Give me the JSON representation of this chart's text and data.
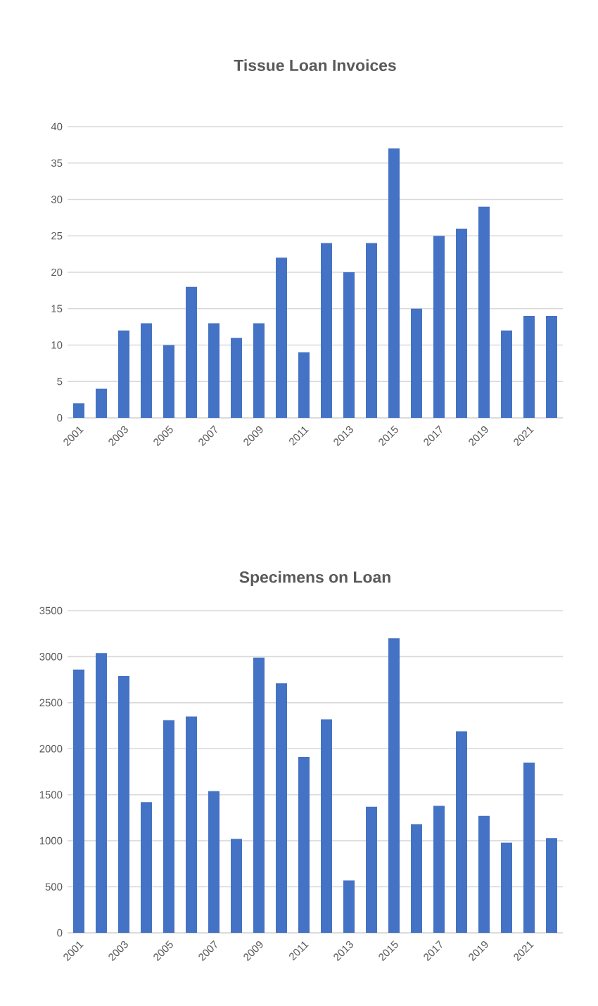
{
  "chart_data": [
    {
      "type": "bar",
      "title": "Tissue Loan Invoices",
      "categories": [
        "2001",
        null,
        "2003",
        null,
        "2005",
        null,
        "2007",
        null,
        "2009",
        null,
        "2011",
        null,
        "2013",
        null,
        "2015",
        null,
        "2017",
        null,
        "2019",
        null,
        "2021",
        null
      ],
      "values": [
        2,
        4,
        12,
        13,
        10,
        18,
        13,
        11,
        13,
        22,
        9,
        24,
        20,
        24,
        37,
        15,
        25,
        26,
        29,
        12,
        14,
        14
      ],
      "color": "#4472c4",
      "ylim": [
        0,
        40
      ],
      "yticks": [
        0,
        5,
        10,
        15,
        20,
        25,
        30,
        35,
        40
      ],
      "grid": "y"
    },
    {
      "type": "bar",
      "title": "Specimens on Loan",
      "categories": [
        "2001",
        null,
        "2003",
        null,
        "2005",
        null,
        "2007",
        null,
        "2009",
        null,
        "2011",
        null,
        "2013",
        null,
        "2015",
        null,
        "2017",
        null,
        "2019",
        null,
        "2021",
        null
      ],
      "values": [
        2860,
        3040,
        2790,
        1420,
        2310,
        2350,
        1540,
        1020,
        2990,
        2710,
        1910,
        2320,
        570,
        1370,
        3200,
        1180,
        1380,
        2190,
        1270,
        980,
        1850,
        1030
      ],
      "color": "#4472c4",
      "ylim": [
        0,
        3500
      ],
      "yticks": [
        0,
        500,
        1000,
        1500,
        2000,
        2500,
        3000,
        3500
      ],
      "grid": "y"
    }
  ]
}
